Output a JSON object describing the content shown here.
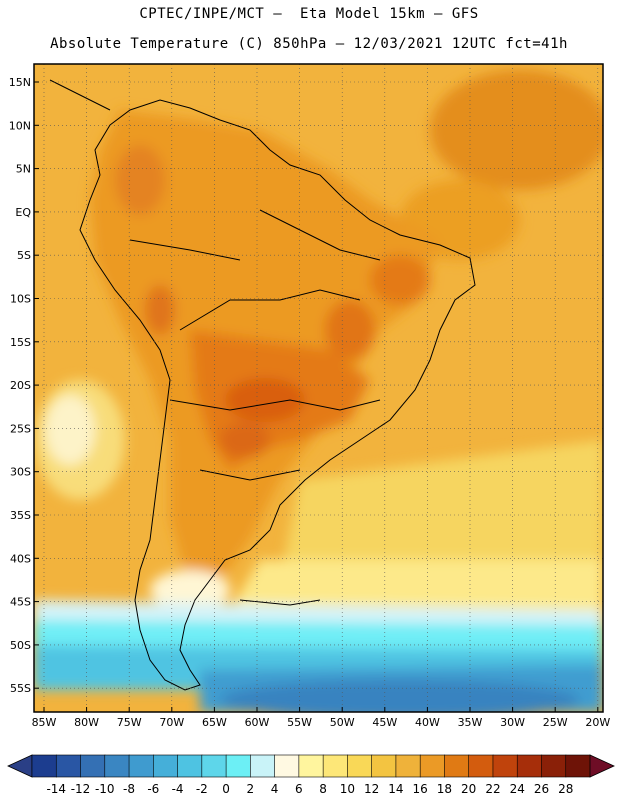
{
  "header": {
    "line1": "CPTEC/INPE/MCT –  Eta Model 15km – GFS",
    "line2": "Absolute Temperature (C) 850hPa – 12/03/2021 12UTC fct=41h"
  },
  "map": {
    "lat_labels": [
      "15N",
      "10N",
      "5N",
      "EQ",
      "5S",
      "10S",
      "15S",
      "20S",
      "25S",
      "30S",
      "35S",
      "40S",
      "45S",
      "50S",
      "55S"
    ],
    "lon_labels": [
      "85W",
      "80W",
      "75W",
      "70W",
      "65W",
      "60W",
      "55W",
      "50W",
      "45W",
      "40W",
      "35W",
      "30W",
      "25W",
      "20W"
    ],
    "background_color": "#f2b33d"
  },
  "colorbar": {
    "ticks": [
      "-14",
      "-12",
      "-10",
      "-8",
      "-6",
      "-4",
      "-2",
      "0",
      "2",
      "4",
      "6",
      "8",
      "10",
      "12",
      "14",
      "16",
      "18",
      "20",
      "22",
      "24",
      "26",
      "28"
    ],
    "colors": [
      "#1c3d8f",
      "#2956a4",
      "#3470b4",
      "#3a86c2",
      "#3f9bcf",
      "#45afd9",
      "#4ec3e2",
      "#5ed6ea",
      "#6ceff5",
      "#c9f3f8",
      "#fff9e2",
      "#fff59e",
      "#fde778",
      "#f9d857",
      "#f3c441",
      "#efb23a",
      "#eb9a26",
      "#e07a14",
      "#d35c0e",
      "#c0430c",
      "#a62e0a",
      "#8a2008",
      "#6e1307"
    ],
    "min_color": "#2a3f86",
    "max_color": "#6e0d26"
  }
}
